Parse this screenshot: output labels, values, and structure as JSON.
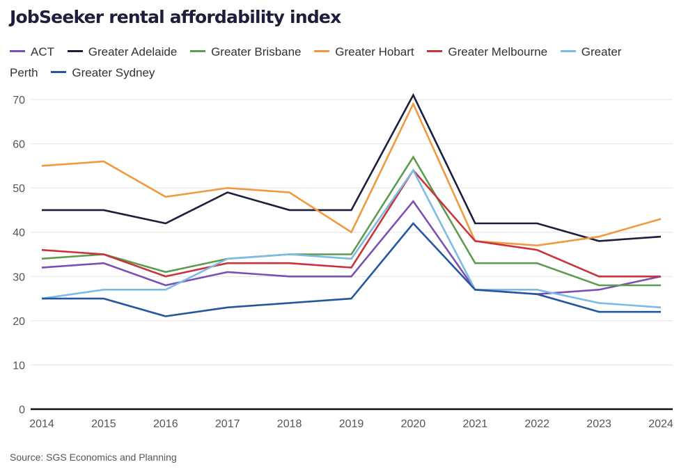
{
  "chart_data": {
    "type": "line",
    "title": "JobSeeker rental affordability index",
    "xlabel": "",
    "ylabel": "",
    "x": [
      "2014",
      "2015",
      "2016",
      "2017",
      "2018",
      "2019",
      "2020",
      "2021",
      "2022",
      "2023",
      "2024"
    ],
    "ylim": [
      0,
      70
    ],
    "yticks": [
      0,
      10,
      20,
      30,
      40,
      50,
      60,
      70
    ],
    "grid": true,
    "legend_position": "top",
    "series": [
      {
        "name": "ACT",
        "color": "#7b4fb4",
        "values": [
          32,
          33,
          28,
          31,
          30,
          30,
          47,
          27,
          26,
          27,
          30
        ]
      },
      {
        "name": "Greater Adelaide",
        "color": "#1b1f3b",
        "values": [
          45,
          45,
          42,
          49,
          45,
          45,
          71,
          42,
          42,
          38,
          39
        ]
      },
      {
        "name": "Greater Brisbane",
        "color": "#5d9b4e",
        "values": [
          34,
          35,
          31,
          34,
          35,
          35,
          57,
          33,
          33,
          28,
          28
        ]
      },
      {
        "name": "Greater Hobart",
        "color": "#f0993e",
        "values": [
          55,
          56,
          48,
          50,
          49,
          40,
          69,
          38,
          37,
          39,
          43
        ]
      },
      {
        "name": "Greater Melbourne",
        "color": "#c9343a",
        "values": [
          36,
          35,
          30,
          33,
          33,
          32,
          54,
          38,
          36,
          30,
          30
        ]
      },
      {
        "name": "Greater Perth",
        "color": "#7bbbe5",
        "values": [
          25,
          27,
          27,
          34,
          35,
          34,
          54,
          27,
          27,
          24,
          23
        ]
      },
      {
        "name": "Greater Sydney",
        "color": "#2557a0",
        "values": [
          25,
          25,
          21,
          23,
          24,
          25,
          42,
          27,
          26,
          22,
          22
        ]
      }
    ],
    "source": "Source: SGS Economics and Planning"
  }
}
